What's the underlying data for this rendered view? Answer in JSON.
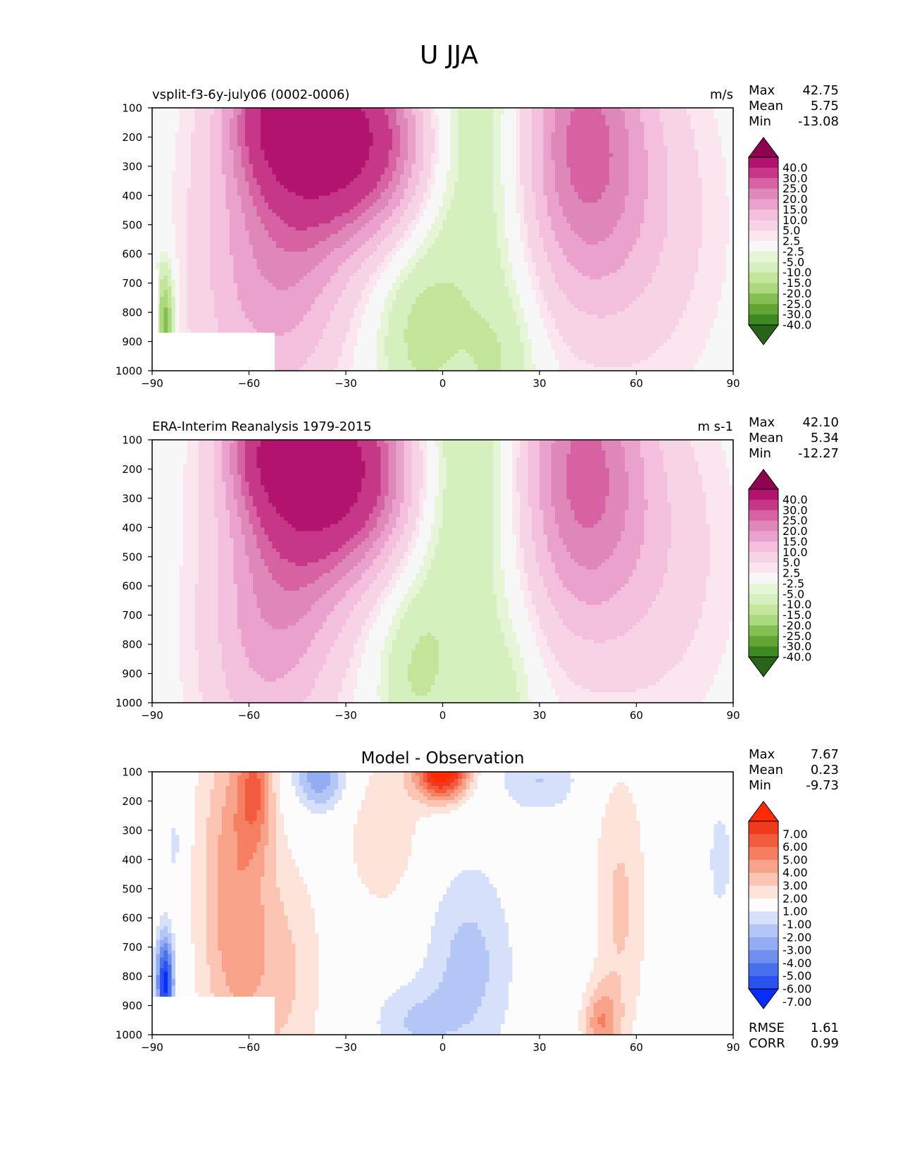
{
  "title": "U JJA",
  "colors": {
    "seq": [
      "#276419",
      "#3d8a22",
      "#62a534",
      "#84bf53",
      "#aad97e",
      "#c2e59a",
      "#d6efbf",
      "#e7f5d7",
      "#f7f7f7",
      "#fbe6f0",
      "#f7d3e6",
      "#f3bfdd",
      "#eaa2cc",
      "#e087ba",
      "#d662a3",
      "#c73788",
      "#b2136f",
      "#8e0152"
    ],
    "diff": [
      "#0a2cff",
      "#2952f0",
      "#4870ed",
      "#6f8ef0",
      "#94acf2",
      "#b4c6f6",
      "#d6e0fb",
      "#fcfcfc",
      "#fde3d9",
      "#fbc3b1",
      "#f9a28a",
      "#f77f61",
      "#f45a3d",
      "#f03a1e",
      "#ff2a00"
    ]
  },
  "chart_data": [
    {
      "type": "heatmap",
      "title": "vsplit-f3-6y-july06 (0002-0006)",
      "units": "m/s",
      "stats": [
        {
          "label": "Max",
          "value": "42.75"
        },
        {
          "label": "Mean",
          "value": "5.75"
        },
        {
          "label": "Min",
          "value": "-13.08"
        }
      ],
      "xlim": [
        -90,
        90
      ],
      "ylim": [
        1000,
        100
      ],
      "xticks": [
        "−90",
        "−60",
        "−30",
        "0",
        "30",
        "60",
        "90"
      ],
      "yticks": [
        "100",
        "200",
        "300",
        "400",
        "500",
        "600",
        "700",
        "800",
        "900",
        "1000"
      ],
      "colorbar": [
        "40.0",
        "30.0",
        "25.0",
        "20.0",
        "15.0",
        "10.0",
        "5.0",
        "2.5",
        "-2.5",
        "-5.0",
        "-10.0",
        "-15.0",
        "-20.0",
        "-25.0",
        "-30.0",
        "-40.0"
      ],
      "levels": [
        -40,
        -30,
        -25,
        -20,
        -15,
        -10,
        -5,
        -2.5,
        2.5,
        5,
        10,
        15,
        20,
        25,
        30,
        40
      ],
      "features": [
        {
          "lon": -28,
          "p": 210,
          "amp": 41,
          "slon": 17,
          "sp": 230
        },
        {
          "lon": -50,
          "p": 110,
          "amp": 26,
          "slon": 11,
          "sp": 170
        },
        {
          "lon": -47,
          "p": 560,
          "amp": 17,
          "slon": 13,
          "sp": 380
        },
        {
          "lon": -66,
          "p": 700,
          "amp": 8,
          "slon": 12,
          "sp": 450
        },
        {
          "lon": 43,
          "p": 220,
          "amp": 26,
          "slon": 14,
          "sp": 380
        },
        {
          "lon": 65,
          "p": 500,
          "amp": 7,
          "slon": 16,
          "sp": 400
        },
        {
          "lon": 8,
          "p": 180,
          "amp": -12,
          "slon": 14,
          "sp": 600
        },
        {
          "lon": -8,
          "p": 880,
          "amp": -9,
          "slon": 9,
          "sp": 200
        },
        {
          "lon": 18,
          "p": 1000,
          "amp": -7,
          "slon": 8,
          "sp": 200
        },
        {
          "lon": -86,
          "p": 840,
          "amp": -24,
          "slon": 2,
          "sp": 140
        }
      ]
    },
    {
      "type": "heatmap",
      "title": "ERA-Interim Reanalysis 1979-2015",
      "units": "m s-1",
      "stats": [
        {
          "label": "Max",
          "value": "42.10"
        },
        {
          "label": "Mean",
          "value": "5.34"
        },
        {
          "label": "Min",
          "value": "-12.27"
        }
      ],
      "xlim": [
        -90,
        90
      ],
      "ylim": [
        1000,
        100
      ],
      "xticks": [
        "−90",
        "−60",
        "−30",
        "0",
        "30",
        "60",
        "90"
      ],
      "yticks": [
        "100",
        "200",
        "300",
        "400",
        "500",
        "600",
        "700",
        "800",
        "900",
        "1000"
      ],
      "colorbar": [
        "40.0",
        "30.0",
        "25.0",
        "20.0",
        "15.0",
        "10.0",
        "5.0",
        "2.5",
        "-2.5",
        "-5.0",
        "-10.0",
        "-15.0",
        "-20.0",
        "-25.0",
        "-30.0",
        "-40.0"
      ],
      "levels": [
        -40,
        -30,
        -25,
        -20,
        -15,
        -10,
        -5,
        -2.5,
        2.5,
        5,
        10,
        15,
        20,
        25,
        30,
        40
      ],
      "features": [
        {
          "lon": -31,
          "p": 200,
          "amp": 41,
          "slon": 16,
          "sp": 240
        },
        {
          "lon": -52,
          "p": 110,
          "amp": 24,
          "slon": 11,
          "sp": 170
        },
        {
          "lon": -47,
          "p": 560,
          "amp": 16,
          "slon": 13,
          "sp": 380
        },
        {
          "lon": -62,
          "p": 800,
          "amp": 8,
          "slon": 12,
          "sp": 400
        },
        {
          "lon": 43,
          "p": 210,
          "amp": 26,
          "slon": 14,
          "sp": 380
        },
        {
          "lon": 68,
          "p": 500,
          "amp": 7,
          "slon": 16,
          "sp": 400
        },
        {
          "lon": 6,
          "p": 170,
          "amp": -12,
          "slon": 13,
          "sp": 600
        },
        {
          "lon": -9,
          "p": 900,
          "amp": -8,
          "slon": 8,
          "sp": 200
        },
        {
          "lon": 20,
          "p": 1000,
          "amp": -5,
          "slon": 7,
          "sp": 200
        }
      ]
    },
    {
      "type": "heatmap",
      "title": "Model - Observation",
      "units": "",
      "stats": [
        {
          "label": "Max",
          "value": "7.67"
        },
        {
          "label": "Mean",
          "value": "0.23"
        },
        {
          "label": "Min",
          "value": "-9.73"
        }
      ],
      "metrics": [
        {
          "label": "RMSE",
          "value": "1.61"
        },
        {
          "label": "CORR",
          "value": "0.99"
        }
      ],
      "xlim": [
        -90,
        90
      ],
      "ylim": [
        1000,
        100
      ],
      "xticks": [
        "−90",
        "−60",
        "−30",
        "0",
        "30",
        "60",
        "90"
      ],
      "yticks": [
        "100",
        "200",
        "300",
        "400",
        "500",
        "600",
        "700",
        "800",
        "900",
        "1000"
      ],
      "colorbar": [
        "7.00",
        "6.00",
        "5.00",
        "4.00",
        "3.00",
        "2.00",
        "1.00",
        "-1.00",
        "-2.00",
        "-3.00",
        "-4.00",
        "-5.00",
        "-6.00",
        "-7.00"
      ],
      "levels": [
        -7,
        -6,
        -5,
        -4,
        -3,
        -2,
        -1,
        1,
        2,
        3,
        4,
        5,
        6,
        7
      ],
      "features": [
        {
          "lon": -65,
          "p": 500,
          "amp": 3.6,
          "slon": 8,
          "sp": 450
        },
        {
          "lon": -58,
          "p": 150,
          "amp": 3.5,
          "slon": 4,
          "sp": 150
        },
        {
          "lon": -49,
          "p": 800,
          "amp": 2.0,
          "slon": 9,
          "sp": 300
        },
        {
          "lon": -38,
          "p": 110,
          "amp": -4.0,
          "slon": 6,
          "sp": 90
        },
        {
          "lon": 0,
          "p": 100,
          "amp": 8.0,
          "slon": 6,
          "sp": 70
        },
        {
          "lon": -18,
          "p": 300,
          "amp": 1.8,
          "slon": 9,
          "sp": 220
        },
        {
          "lon": 8,
          "p": 760,
          "amp": -2.4,
          "slon": 10,
          "sp": 250
        },
        {
          "lon": -10,
          "p": 960,
          "amp": -1.8,
          "slon": 9,
          "sp": 100
        },
        {
          "lon": 30,
          "p": 130,
          "amp": -2.0,
          "slon": 9,
          "sp": 80
        },
        {
          "lon": 55,
          "p": 560,
          "amp": 2.2,
          "slon": 6,
          "sp": 350
        },
        {
          "lon": 49,
          "p": 960,
          "amp": 3.4,
          "slon": 4,
          "sp": 90
        },
        {
          "lon": 86,
          "p": 400,
          "amp": -1.5,
          "slon": 3,
          "sp": 150
        },
        {
          "lon": -83,
          "p": 350,
          "amp": -1.5,
          "slon": 2,
          "sp": 100
        },
        {
          "lon": -86,
          "p": 820,
          "amp": -7.5,
          "slon": 2,
          "sp": 120
        }
      ]
    }
  ]
}
